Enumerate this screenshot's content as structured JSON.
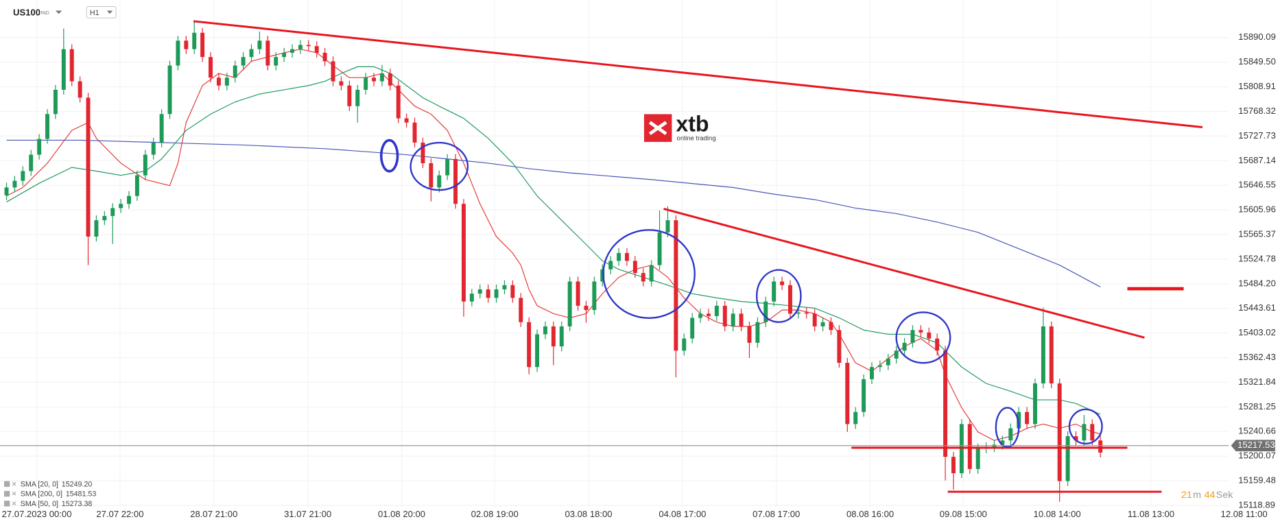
{
  "header": {
    "symbol": "US100",
    "market": "IND",
    "timeframe": "H1"
  },
  "logo": {
    "name": "xtb",
    "tagline": "online trading"
  },
  "chart_data": {
    "type": "candlestick",
    "colors": {
      "up": "#1e9a58",
      "down": "#e2262f"
    },
    "open": [
      15630,
      15643,
      15654,
      15670,
      15697,
      15723,
      15764,
      15804,
      15871,
      15818,
      15791,
      15562,
      15589,
      15596,
      15609,
      15616,
      15629,
      15663,
      15697,
      15717,
      15764,
      15844,
      15885,
      15871,
      15898,
      15858,
      15824,
      15811,
      15824,
      15844,
      15858,
      15871,
      15885,
      15844,
      15858,
      15865,
      15871,
      15878,
      15876,
      15865,
      15851,
      15818,
      15811,
      15777,
      15804,
      15824,
      15818,
      15831,
      15811,
      15757,
      15750,
      15717,
      15683,
      15643,
      15663,
      15690,
      15616,
      15455,
      15468,
      15475,
      15461,
      15475,
      15482,
      15461,
      15421,
      15347,
      15401,
      15414,
      15381,
      15414,
      15488,
      15448,
      15441,
      15488,
      15508,
      15522,
      15535,
      15522,
      15502,
      15488,
      15515,
      15569,
      15589,
      15374,
      15394,
      15428,
      15435,
      15431,
      15448,
      15414,
      15435,
      15414,
      15387,
      15421,
      15455,
      15488,
      15482,
      15435,
      15437,
      15435,
      15414,
      15421,
      15408,
      15354,
      15253,
      15273,
      15327,
      15347,
      15350,
      15361,
      15374,
      15387,
      15408,
      15404,
      15394,
      15374,
      15199,
      15172,
      15253,
      15179,
      15213,
      15215,
      15219,
      15226,
      15246,
      15273,
      15253,
      15320,
      15414,
      15320,
      15159,
      15233,
      15226,
      15253,
      15226
    ],
    "high": [
      15651,
      15662,
      15678,
      15705,
      15731,
      15772,
      15812,
      15905,
      15879,
      15826,
      15799,
      15597,
      15604,
      15617,
      15624,
      15637,
      15671,
      15705,
      15725,
      15772,
      15852,
      15893,
      15893,
      15918,
      15906,
      15866,
      15832,
      15832,
      15852,
      15866,
      15879,
      15900,
      15893,
      15866,
      15873,
      15879,
      15886,
      15886,
      15884,
      15873,
      15859,
      15826,
      15819,
      15812,
      15832,
      15832,
      15845,
      15839,
      15819,
      15765,
      15758,
      15725,
      15691,
      15671,
      15698,
      15698,
      15624,
      15476,
      15483,
      15483,
      15483,
      15490,
      15490,
      15469,
      15429,
      15409,
      15422,
      15422,
      15422,
      15496,
      15496,
      15456,
      15496,
      15516,
      15530,
      15543,
      15543,
      15530,
      15510,
      15523,
      15605,
      15612,
      15597,
      15402,
      15436,
      15443,
      15443,
      15456,
      15456,
      15443,
      15443,
      15422,
      15429,
      15463,
      15496,
      15496,
      15490,
      15445,
      15445,
      15443,
      15429,
      15429,
      15416,
      15362,
      15281,
      15335,
      15355,
      15358,
      15369,
      15382,
      15395,
      15416,
      15416,
      15412,
      15402,
      15382,
      15207,
      15261,
      15261,
      15221,
      15223,
      15227,
      15234,
      15254,
      15281,
      15281,
      15328,
      15445,
      15422,
      15328,
      15241,
      15241,
      15268,
      15261,
      15234
    ],
    "low": [
      15622,
      15635,
      15646,
      15662,
      15689,
      15715,
      15756,
      15796,
      15810,
      15783,
      15515,
      15554,
      15581,
      15550,
      15601,
      15608,
      15621,
      15655,
      15689,
      15709,
      15756,
      15836,
      15863,
      15863,
      15850,
      15816,
      15803,
      15803,
      15816,
      15836,
      15850,
      15863,
      15836,
      15836,
      15850,
      15857,
      15863,
      15868,
      15857,
      15843,
      15810,
      15803,
      15769,
      15750,
      15796,
      15810,
      15810,
      15803,
      15749,
      15742,
      15709,
      15675,
      15620,
      15635,
      15655,
      15608,
      15430,
      15447,
      15460,
      15453,
      15453,
      15467,
      15453,
      15413,
      15335,
      15339,
      15393,
      15350,
      15373,
      15406,
      15440,
      15420,
      15433,
      15480,
      15500,
      15514,
      15514,
      15494,
      15480,
      15480,
      15507,
      15561,
      15330,
      15366,
      15386,
      15420,
      15423,
      15423,
      15406,
      15406,
      15406,
      15362,
      15379,
      15413,
      15447,
      15474,
      15427,
      15427,
      15427,
      15406,
      15406,
      15400,
      15346,
      15240,
      15245,
      15265,
      15319,
      15339,
      15342,
      15353,
      15366,
      15379,
      15396,
      15386,
      15366,
      15160,
      15145,
      15164,
      15171,
      15171,
      15205,
      15207,
      15211,
      15218,
      15238,
      15245,
      15245,
      15312,
      15312,
      15125,
      15151,
      15218,
      15218,
      15218,
      15198
    ],
    "close": [
      15643,
      15654,
      15670,
      15697,
      15723,
      15764,
      15804,
      15871,
      15818,
      15791,
      15562,
      15589,
      15596,
      15609,
      15616,
      15629,
      15663,
      15697,
      15717,
      15764,
      15844,
      15885,
      15871,
      15898,
      15858,
      15824,
      15811,
      15824,
      15844,
      15858,
      15871,
      15885,
      15844,
      15858,
      15865,
      15871,
      15878,
      15876,
      15865,
      15851,
      15818,
      15811,
      15777,
      15804,
      15824,
      15818,
      15831,
      15811,
      15757,
      15750,
      15717,
      15683,
      15643,
      15663,
      15690,
      15616,
      15455,
      15468,
      15475,
      15461,
      15475,
      15482,
      15461,
      15421,
      15347,
      15401,
      15414,
      15381,
      15414,
      15488,
      15448,
      15441,
      15488,
      15508,
      15522,
      15535,
      15522,
      15502,
      15488,
      15515,
      15569,
      15589,
      15374,
      15394,
      15428,
      15435,
      15431,
      15448,
      15414,
      15435,
      15414,
      15387,
      15421,
      15455,
      15488,
      15482,
      15435,
      15437,
      15435,
      15414,
      15421,
      15408,
      15354,
      15253,
      15273,
      15327,
      15347,
      15350,
      15361,
      15374,
      15387,
      15408,
      15404,
      15394,
      15374,
      15199,
      15172,
      15253,
      15179,
      15213,
      15215,
      15219,
      15226,
      15246,
      15273,
      15253,
      15320,
      15414,
      15320,
      15159,
      15233,
      15226,
      15253,
      15226,
      15206
    ],
    "series": [
      {
        "name": "SMA [20, 0]",
        "last": {
          "value": 15249.2,
          "label": "15249.20"
        },
        "color": "#e53a3a",
        "x": [
          0,
          2,
          5,
          8,
          10,
          11,
          14,
          17,
          20,
          21,
          22,
          24,
          26,
          28,
          30,
          32,
          34,
          36,
          38,
          40,
          42,
          44,
          46,
          48,
          50,
          52,
          54,
          56,
          58,
          60,
          62,
          63,
          64,
          65,
          67,
          69,
          71,
          73,
          75,
          77,
          79,
          81,
          83,
          85,
          87,
          89,
          91,
          93,
          95,
          97,
          99,
          101,
          102,
          104,
          106,
          108,
          110,
          112,
          114,
          115,
          117,
          119,
          121,
          123,
          125,
          127,
          129,
          131,
          133,
          134
        ],
        "values": [
          15629,
          15643,
          15683,
          15737,
          15750,
          15724,
          15683,
          15656,
          15646,
          15683,
          15750,
          15811,
          15831,
          15824,
          15851,
          15858,
          15865,
          15871,
          15865,
          15844,
          15824,
          15824,
          15831,
          15804,
          15777,
          15764,
          15737,
          15683,
          15616,
          15562,
          15535,
          15515,
          15475,
          15448,
          15435,
          15428,
          15435,
          15468,
          15495,
          15508,
          15515,
          15495,
          15461,
          15435,
          15421,
          15414,
          15414,
          15421,
          15441,
          15441,
          15435,
          15421,
          15401,
          15354,
          15340,
          15361,
          15381,
          15394,
          15374,
          15334,
          15280,
          15240,
          15226,
          15233,
          15246,
          15253,
          15246,
          15253,
          15240,
          15237
        ]
      },
      {
        "name": "SMA [200, 0]",
        "last": {
          "value": 15481.53,
          "label": "15481.53"
        },
        "color": "#4a55b8",
        "x": [
          0,
          9,
          19,
          29,
          39,
          49,
          54,
          59,
          64,
          69,
          79,
          89,
          94,
          99,
          104,
          109,
          114,
          119,
          124,
          129,
          134
        ],
        "values": [
          15721,
          15721,
          15717,
          15713,
          15707,
          15697,
          15690,
          15683,
          15674,
          15667,
          15656,
          15643,
          15632,
          15623,
          15609,
          15600,
          15586,
          15569,
          15542,
          15515,
          15479
        ]
      },
      {
        "name": "SMA [50, 0]",
        "last": {
          "value": 15273.38,
          "label": "15273.38"
        },
        "color": "#1f9a5e",
        "x": [
          0,
          4,
          8,
          11,
          14,
          17,
          19,
          22,
          25,
          28,
          31,
          34,
          37,
          39,
          41,
          43,
          45,
          47,
          49,
          51,
          53,
          56,
          59,
          62,
          65,
          68,
          71,
          73,
          75,
          78,
          81,
          84,
          87,
          90,
          93,
          96,
          99,
          102,
          105,
          108,
          111,
          114,
          117,
          120,
          123,
          126,
          129,
          131,
          134
        ],
        "values": [
          15619,
          15650,
          15676,
          15670,
          15663,
          15670,
          15690,
          15737,
          15764,
          15784,
          15797,
          15804,
          15811,
          15818,
          15831,
          15842,
          15842,
          15831,
          15811,
          15791,
          15777,
          15757,
          15724,
          15683,
          15629,
          15589,
          15549,
          15522,
          15508,
          15495,
          15482,
          15468,
          15461,
          15455,
          15452,
          15448,
          15444,
          15428,
          15408,
          15401,
          15401,
          15387,
          15347,
          15320,
          15307,
          15293,
          15293,
          15287,
          15269
        ]
      }
    ],
    "xlim": [
      -0.8,
      155.2
    ],
    "xticks": [
      {
        "value": 3.7,
        "label": "27.07.2023 00:00"
      },
      {
        "value": 13.9,
        "label": "27.07 22:00"
      },
      {
        "value": 25.4,
        "label": "28.07 21:00"
      },
      {
        "value": 36.9,
        "label": "31.07 21:00"
      },
      {
        "value": 48.4,
        "label": "01.08 20:00"
      },
      {
        "value": 59.8,
        "label": "02.08 19:00"
      },
      {
        "value": 71.3,
        "label": "03.08 18:00"
      },
      {
        "value": 82.8,
        "label": "04.08 17:00"
      },
      {
        "value": 94.3,
        "label": "07.08 17:00"
      },
      {
        "value": 105.8,
        "label": "08.08 16:00"
      },
      {
        "value": 117.2,
        "label": "09.08 15:00"
      },
      {
        "value": 128.7,
        "label": "10.08 14:00"
      },
      {
        "value": 140.2,
        "label": "11.08 13:00"
      },
      {
        "value": 151.6,
        "label": "12.08 11:00"
      }
    ],
    "ylim": [
      15085,
      15952
    ],
    "yticks": [
      15890.09,
      {
        "value": 15849.5,
        "label": "15849.50"
      },
      15808.91,
      15768.32,
      15727.73,
      15687.14,
      15646.55,
      15605.96,
      15565.37,
      15524.78,
      {
        "value": 15484.2,
        "label": "15484.20"
      },
      15443.61,
      15403.02,
      15362.43,
      15321.84,
      15281.25,
      15240.66,
      15200.07,
      15159.48,
      15118.89
    ],
    "grid": true,
    "last_price": 15217.53,
    "countdown": {
      "minutes": 21,
      "minutes_unit": "m",
      "seconds": 44,
      "seconds_unit": "Sek"
    }
  }
}
